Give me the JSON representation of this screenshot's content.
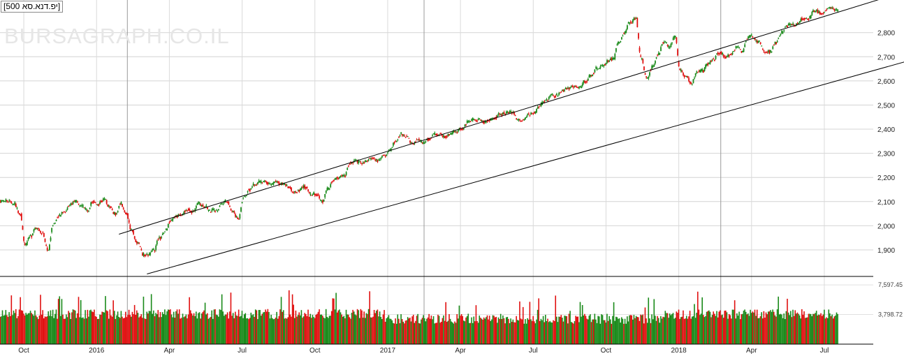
{
  "chart_data": {
    "type": "candlestick",
    "title": "[500 אס.אנד.פי]",
    "watermark": "BURSAGRAPH.CO.IL",
    "price_axis": {
      "ticks": [
        1900,
        2000,
        2100,
        2200,
        2300,
        2400,
        2500,
        2600,
        2700,
        2800
      ],
      "ylim": [
        1790,
        2935
      ]
    },
    "volume_axis": {
      "ticks": [
        "3,798.72",
        "7,597.45"
      ],
      "tick_values": [
        3798.72,
        7597.45
      ],
      "ylim": [
        0,
        8500
      ]
    },
    "x_tick_labels": [
      "Oct",
      "2016",
      "Apr",
      "Jul",
      "Oct",
      "2017",
      "Apr",
      "Jul",
      "Oct",
      "2018",
      "Apr",
      "Jul"
    ],
    "x_tick_weeks": [
      4,
      17,
      30,
      43,
      56,
      69,
      82,
      95,
      108,
      121,
      134,
      147
    ],
    "year_lines_weeks": [
      22.5,
      75.5,
      128.5
    ],
    "trend_channel": {
      "upper": [
        [
          21,
          1965
        ],
        [
          160,
          2960
        ]
      ],
      "lower": [
        [
          26,
          1800
        ],
        [
          170,
          2735
        ]
      ]
    },
    "weekly_close": [
      2100,
      2100,
      2090,
      2050,
      1920,
      1960,
      1990,
      1970,
      1900,
      2010,
      2040,
      2060,
      2090,
      2100,
      2080,
      2060,
      2100,
      2090,
      2110,
      2080,
      2050,
      2090,
      2050,
      1980,
      1930,
      1880,
      1880,
      1900,
      1950,
      1980,
      2020,
      2040,
      2050,
      2070,
      2060,
      2090,
      2080,
      2060,
      2060,
      2090,
      2100,
      2060,
      2030,
      2120,
      2150,
      2170,
      2180,
      2180,
      2170,
      2180,
      2170,
      2160,
      2140,
      2150,
      2160,
      2130,
      2130,
      2100,
      2150,
      2190,
      2200,
      2210,
      2260,
      2270,
      2260,
      2270,
      2280,
      2270,
      2290,
      2310,
      2350,
      2380,
      2370,
      2340,
      2360,
      2340,
      2360,
      2380,
      2380,
      2370,
      2380,
      2390,
      2400,
      2430,
      2440,
      2440,
      2430,
      2440,
      2450,
      2460,
      2470,
      2470,
      2440,
      2440,
      2460,
      2470,
      2500,
      2520,
      2540,
      2540,
      2560,
      2570,
      2580,
      2570,
      2600,
      2620,
      2650,
      2660,
      2680,
      2690,
      2760,
      2800,
      2840,
      2860,
      2690,
      2610,
      2660,
      2710,
      2760,
      2740,
      2780,
      2640,
      2620,
      2590,
      2640,
      2640,
      2670,
      2690,
      2720,
      2700,
      2710,
      2740,
      2720,
      2780,
      2780,
      2760,
      2720,
      2720,
      2760,
      2800,
      2830,
      2830,
      2840,
      2860,
      2860,
      2890,
      2880,
      2900,
      2900,
      2890
    ],
    "notes": "Weekly approximation of an S&P 500 candlestick chart from ~Aug 2015 to ~Sep 2018 with volume histogram and a rising trend channel."
  }
}
